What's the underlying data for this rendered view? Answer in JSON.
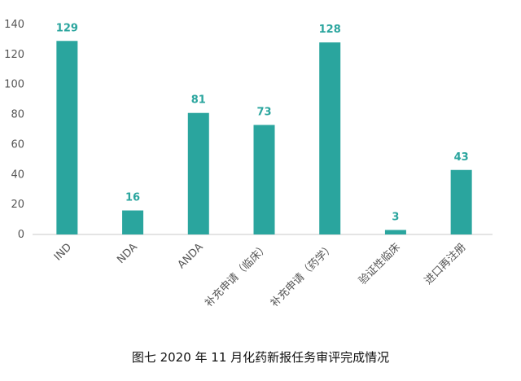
{
  "chart_data": {
    "type": "bar",
    "categories": [
      "IND",
      "NDA",
      "ANDA",
      "补充申请（临床）",
      "补充申请（药学）",
      "验证性临床",
      "进口再注册"
    ],
    "values": [
      129,
      16,
      81,
      73,
      128,
      3,
      43
    ],
    "ylim": [
      0,
      140
    ],
    "yticks": [
      0,
      20,
      40,
      60,
      80,
      100,
      120,
      140
    ],
    "bar_color": "#2aa59e",
    "label_color": "#2aa59e",
    "grid": false,
    "legend": "none"
  },
  "caption": "图七 2020 年 11 月化药新报任务审评完成情况"
}
